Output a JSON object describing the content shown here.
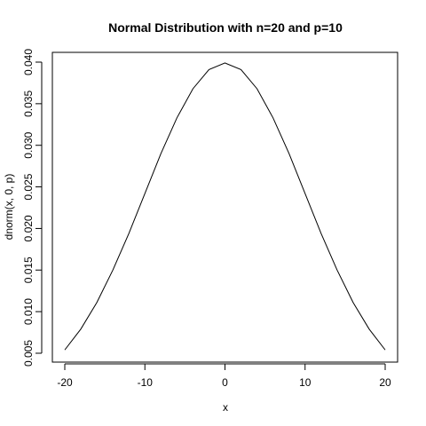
{
  "chart_data": {
    "type": "line",
    "title": "Normal Distribution with n=20 and p=10",
    "xlabel": "x",
    "ylabel": "dnorm(x, 0, p)",
    "xlim": [
      -20,
      20
    ],
    "ylim": [
      0.005,
      0.04
    ],
    "grid": false,
    "legend": "none",
    "x_ticks": [
      -20,
      -10,
      0,
      10,
      20
    ],
    "x_tick_labels": [
      "-20",
      "-10",
      "0",
      "10",
      "20"
    ],
    "y_ticks": [
      0.005,
      0.01,
      0.015,
      0.02,
      0.025,
      0.03,
      0.035,
      0.04
    ],
    "y_tick_labels": [
      "0.005",
      "0.010",
      "0.015",
      "0.020",
      "0.025",
      "0.030",
      "0.035",
      "0.040"
    ],
    "series": [
      {
        "color": "#000000",
        "x": [
          -20,
          -18,
          -16,
          -14,
          -12,
          -10,
          -8,
          -6,
          -4,
          -2,
          0,
          2,
          4,
          6,
          8,
          10,
          12,
          14,
          16,
          18,
          20
        ],
        "y": [
          0.0054,
          0.0079,
          0.0111,
          0.015,
          0.0194,
          0.0242,
          0.029,
          0.0333,
          0.0368,
          0.0391,
          0.0399,
          0.0391,
          0.0368,
          0.0333,
          0.029,
          0.0242,
          0.0194,
          0.015,
          0.0111,
          0.0079,
          0.0054
        ]
      }
    ]
  }
}
